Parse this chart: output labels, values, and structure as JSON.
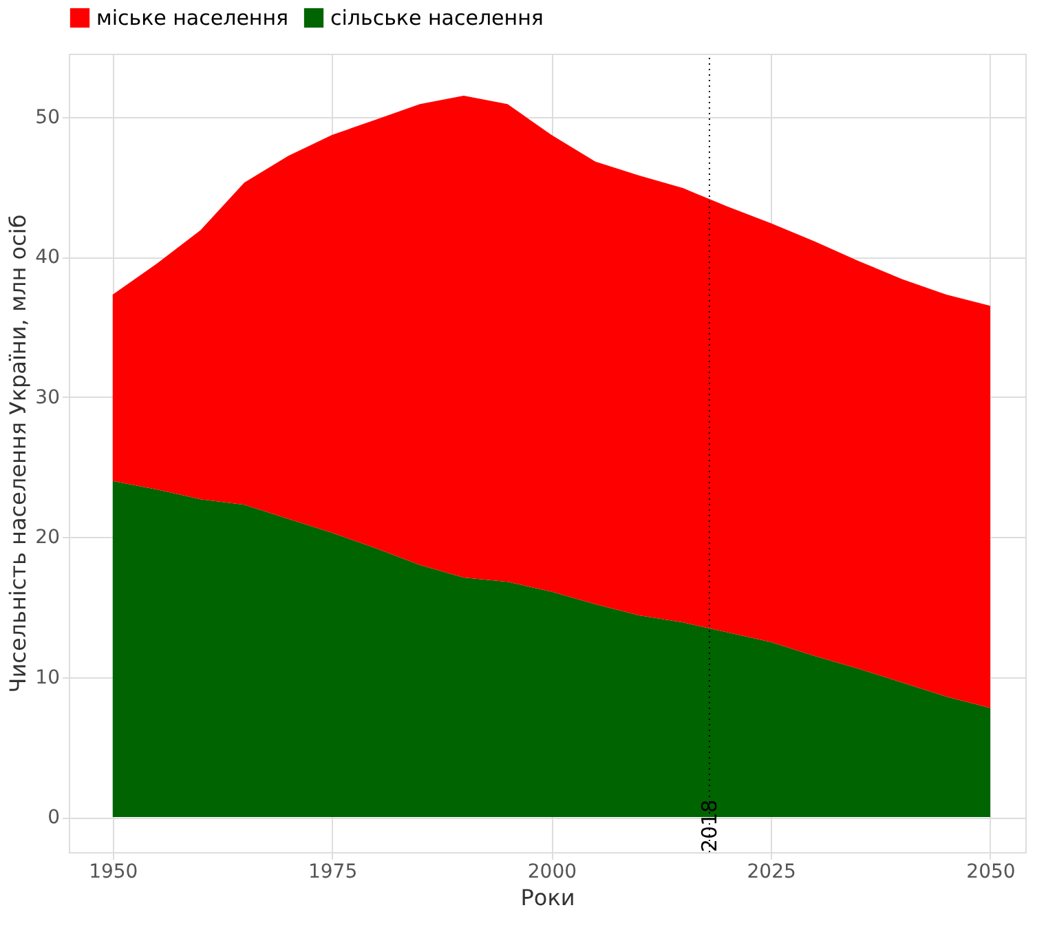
{
  "chart_data": {
    "type": "area",
    "stacked": true,
    "xlabel": "Роки",
    "ylabel": "Чисельність населення України, млн осіб",
    "x": [
      1950,
      1955,
      1960,
      1965,
      1970,
      1975,
      1980,
      1985,
      1990,
      1995,
      2000,
      2005,
      2010,
      2015,
      2020,
      2025,
      2030,
      2035,
      2040,
      2045,
      2050
    ],
    "series": [
      {
        "name": "сільське населення",
        "color": "#006400",
        "values": [
          24.0,
          23.4,
          22.7,
          22.3,
          21.3,
          20.3,
          19.2,
          18.0,
          17.1,
          16.8,
          16.1,
          15.2,
          14.4,
          13.9,
          13.2,
          12.5,
          11.5,
          10.6,
          9.6,
          8.6,
          7.8
        ]
      },
      {
        "name": "міське населення",
        "color": "#ff0000",
        "values": [
          13.3,
          16.1,
          19.2,
          23.0,
          25.9,
          28.4,
          30.6,
          32.9,
          34.4,
          34.1,
          32.6,
          31.6,
          31.4,
          31.0,
          30.4,
          29.9,
          29.6,
          29.1,
          28.8,
          28.7,
          28.7
        ]
      }
    ],
    "xlim": [
      1945,
      2054
    ],
    "xticks": [
      1950,
      1975,
      2000,
      2025,
      2050
    ],
    "ylim": [
      -2.5,
      54.5
    ],
    "yticks": [
      0,
      10,
      20,
      30,
      40,
      50
    ],
    "ref_lines": [
      {
        "axis": "x",
        "value": 2018,
        "label": "2018",
        "color": "#000000",
        "line_style": "dotted"
      }
    ],
    "grid": true,
    "legend": "top"
  }
}
